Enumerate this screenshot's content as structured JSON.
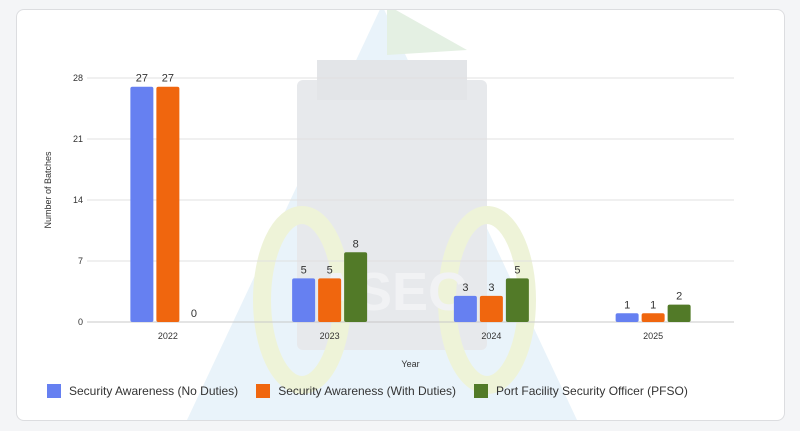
{
  "watermark": {
    "text": "ASEC"
  },
  "chart_data": {
    "type": "bar",
    "title": "",
    "xlabel": "Year",
    "ylabel": "Number of Batches",
    "categories": [
      "2022",
      "2023",
      "2024",
      "2025"
    ],
    "ylim": [
      0,
      28
    ],
    "yticks": [
      0,
      7,
      14,
      21,
      28
    ],
    "grid": true,
    "legend_position": "bottom-left",
    "series": [
      {
        "name": "Security Awareness (No Duties)",
        "color": "#6680f1",
        "values": [
          27,
          5,
          3,
          1
        ]
      },
      {
        "name": "Security Awareness (With Duties)",
        "color": "#f0660e",
        "values": [
          27,
          5,
          3,
          1
        ]
      },
      {
        "name": "Port Facility Security Officer (PFSO)",
        "color": "#527a28",
        "values": [
          0,
          8,
          5,
          2
        ]
      }
    ]
  }
}
